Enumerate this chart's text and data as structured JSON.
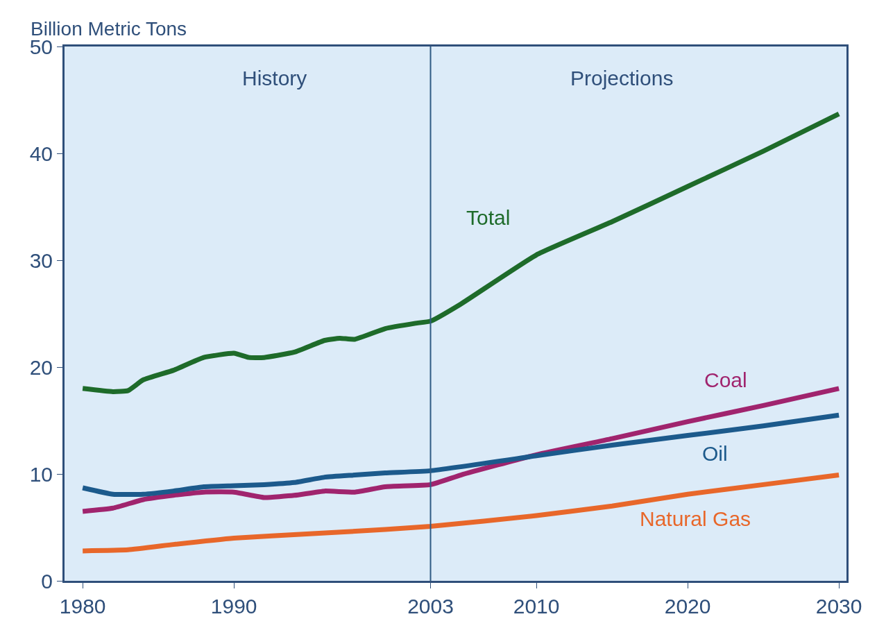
{
  "chart_data": {
    "type": "line",
    "ylabel": "Billion Metric Tons",
    "annotations": [
      "History",
      "Projections"
    ],
    "xlim": [
      1978.8,
      2030.5
    ],
    "xticks": [
      1980,
      1990,
      2003,
      2010,
      2020,
      2030
    ],
    "ylim": [
      0,
      50
    ],
    "yticks": [
      0,
      10,
      20,
      30,
      40,
      50
    ],
    "grid": false,
    "legend": false,
    "ref_lines": [
      {
        "axis": "x",
        "value": 2003,
        "color": "#2f5b84"
      }
    ],
    "series": [
      {
        "name": "Total",
        "color": "#1e6b2a",
        "x": [
          1980,
          1982,
          1983,
          1984,
          1986,
          1988,
          1990,
          1991,
          1992,
          1994,
          1996,
          1997,
          1998,
          2000,
          2002,
          2003,
          2005,
          2010,
          2015,
          2020,
          2025,
          2030
        ],
        "values": [
          18.0,
          17.7,
          17.8,
          18.8,
          19.7,
          20.9,
          21.3,
          20.9,
          20.9,
          21.4,
          22.5,
          22.7,
          22.6,
          23.6,
          24.1,
          24.3,
          25.9,
          30.5,
          33.6,
          36.9,
          40.2,
          43.7
        ]
      },
      {
        "name": "Coal",
        "color": "#a0246e",
        "x": [
          1980,
          1982,
          1984,
          1986,
          1988,
          1990,
          1992,
          1994,
          1996,
          1998,
          2000,
          2003,
          2005,
          2010,
          2015,
          2020,
          2025,
          2030
        ],
        "values": [
          6.5,
          6.8,
          7.6,
          8.0,
          8.3,
          8.3,
          7.8,
          8.0,
          8.4,
          8.3,
          8.8,
          9.0,
          9.9,
          11.8,
          13.3,
          14.9,
          16.4,
          18.0
        ]
      },
      {
        "name": "Oil",
        "color": "#1c5a8c",
        "x": [
          1980,
          1982,
          1984,
          1986,
          1988,
          1990,
          1992,
          1994,
          1996,
          1998,
          2000,
          2003,
          2010,
          2015,
          2020,
          2025,
          2030
        ],
        "values": [
          8.7,
          8.1,
          8.1,
          8.4,
          8.8,
          8.9,
          9.0,
          9.2,
          9.7,
          9.9,
          10.1,
          10.3,
          11.7,
          12.7,
          13.6,
          14.5,
          15.5
        ]
      },
      {
        "name": "Natural Gas",
        "color": "#e8672a",
        "x": [
          1980,
          1983,
          1986,
          1990,
          1995,
          2000,
          2003,
          2010,
          2015,
          2020,
          2025,
          2030
        ],
        "values": [
          2.8,
          2.9,
          3.4,
          4.0,
          4.4,
          4.8,
          5.1,
          6.1,
          7.0,
          8.1,
          9.0,
          9.9
        ]
      }
    ]
  }
}
